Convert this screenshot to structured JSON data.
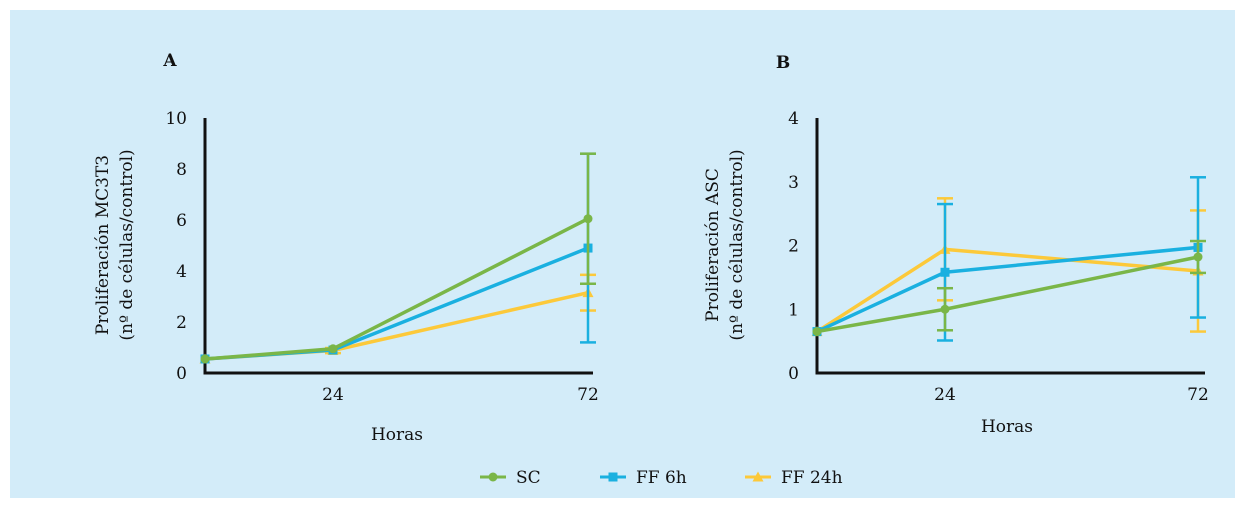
{
  "colors": {
    "panel_bg": "#d3ecf9",
    "axis": "#111111"
  },
  "legend": [
    {
      "label": "SC",
      "color": "#7ab648",
      "marker": "circle"
    },
    {
      "label": "FF 6h",
      "color": "#1ab0e0",
      "marker": "square"
    },
    {
      "label": "FF 24h",
      "color": "#fcc93a",
      "marker": "triangle"
    }
  ],
  "chart_data": [
    {
      "type": "line",
      "panel_label": "A",
      "xlabel": "Horas",
      "ylabel": [
        "Proliferación MC3T3",
        "(nº de células/control)"
      ],
      "categories": [
        "",
        "24",
        "72"
      ],
      "ylim": [
        0,
        10
      ],
      "yticks": [
        0,
        2,
        4,
        6,
        8,
        10
      ],
      "series": [
        {
          "name": "SC",
          "color": "#7ab648",
          "marker": "circle",
          "values": [
            0.55,
            0.95,
            6.05
          ],
          "err": [
            null,
            null,
            2.55
          ]
        },
        {
          "name": "FF 6h",
          "color": "#1ab0e0",
          "marker": "square",
          "values": [
            0.55,
            0.9,
            4.9
          ],
          "err": [
            null,
            null,
            3.7
          ]
        },
        {
          "name": "FF 24h",
          "color": "#fcc93a",
          "marker": "triangle",
          "values": [
            0.55,
            0.88,
            3.15
          ],
          "err": [
            null,
            0.1,
            0.7
          ]
        }
      ]
    },
    {
      "type": "line",
      "panel_label": "B",
      "xlabel": "Horas",
      "ylabel": [
        "Proliferación ASC",
        "(nº de células/control)"
      ],
      "categories": [
        "",
        "24",
        "72"
      ],
      "ylim": [
        0,
        4
      ],
      "yticks": [
        0,
        1,
        2,
        3,
        4
      ],
      "series": [
        {
          "name": "SC",
          "color": "#7ab648",
          "marker": "circle",
          "values": [
            0.65,
            1.0,
            1.82
          ],
          "err": [
            null,
            0.33,
            0.25
          ]
        },
        {
          "name": "FF 6h",
          "color": "#1ab0e0",
          "marker": "square",
          "values": [
            0.65,
            1.58,
            1.97
          ],
          "err": [
            null,
            1.07,
            1.1
          ]
        },
        {
          "name": "FF 24h",
          "color": "#fcc93a",
          "marker": "triangle",
          "values": [
            0.65,
            1.94,
            1.6
          ],
          "err": [
            null,
            0.8,
            0.95
          ]
        }
      ]
    }
  ]
}
